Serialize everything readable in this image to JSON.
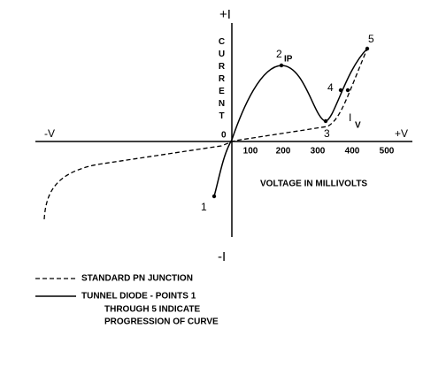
{
  "diagram": {
    "axes": {
      "plus_i": "+I",
      "minus_i": "-I",
      "minus_v": "-V",
      "plus_v": "+V",
      "y_label": "CURRENT",
      "origin": "0",
      "x_ticks": [
        "100",
        "200",
        "300",
        "400",
        "500"
      ],
      "x_label": "VOLTAGE IN MILLIVOLTS"
    },
    "points": {
      "p1": "1",
      "p2": "2",
      "ip": "IP",
      "p3": "3",
      "p4": "4",
      "p5": "5",
      "iv": {
        "main": "I",
        "sub": "V"
      }
    },
    "legend": {
      "dashed": "STANDARD PN JUNCTION",
      "solid": [
        "TUNNEL DIODE - POINTS 1",
        "THROUGH 5 INDICATE",
        "PROGRESSION OF CURVE"
      ]
    }
  }
}
